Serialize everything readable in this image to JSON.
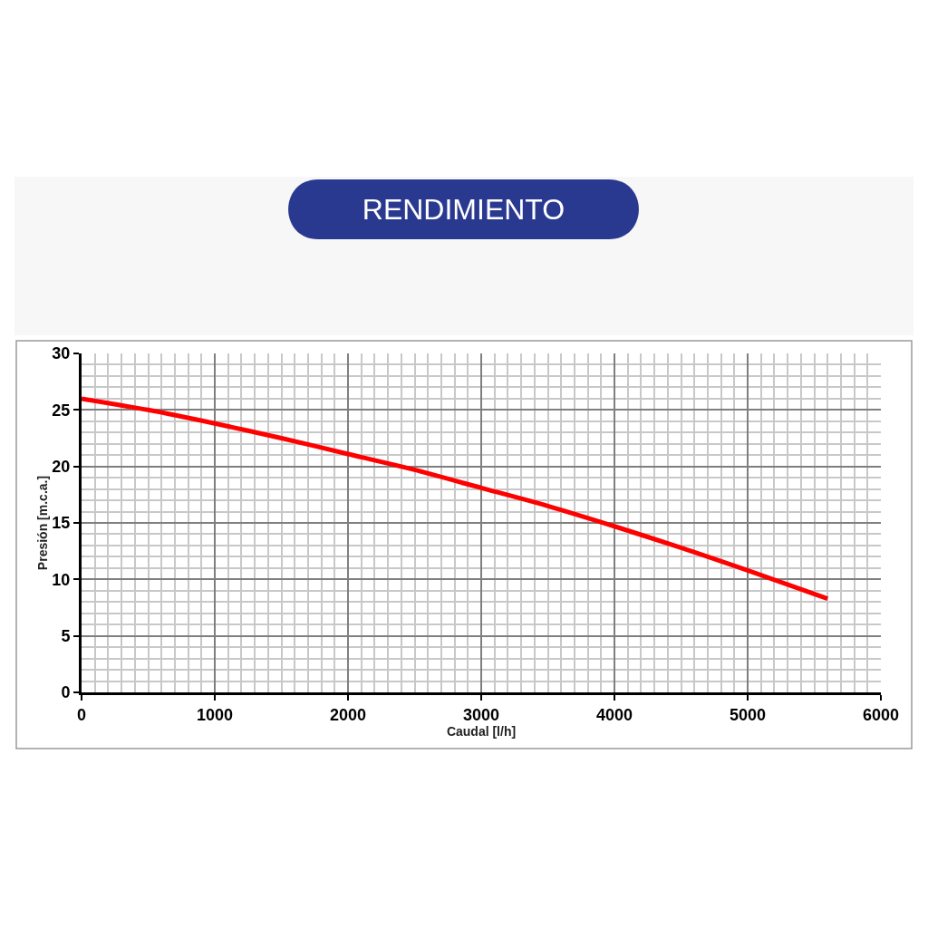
{
  "chart_data": {
    "type": "line",
    "title": "RENDIMIENTO",
    "xlabel": "Caudal [l/h]",
    "ylabel": "Presión [m.c.a.]",
    "x": [
      0,
      500,
      1000,
      1500,
      2000,
      2500,
      3000,
      3500,
      4000,
      4500,
      5000,
      5600
    ],
    "series": [
      {
        "color": "#ff0000",
        "values": [
          26.0,
          25.0,
          23.8,
          22.5,
          21.1,
          19.7,
          18.1,
          16.5,
          14.7,
          12.8,
          10.8,
          8.3
        ]
      }
    ],
    "xlim": [
      0,
      6000
    ],
    "xticks": [
      0,
      1000,
      2000,
      3000,
      4000,
      5000,
      6000
    ],
    "ylim": [
      0,
      30
    ],
    "yticks": [
      0,
      5,
      10,
      15,
      20,
      25,
      30
    ],
    "grid": true,
    "marker": "none",
    "line_style": "solid"
  }
}
